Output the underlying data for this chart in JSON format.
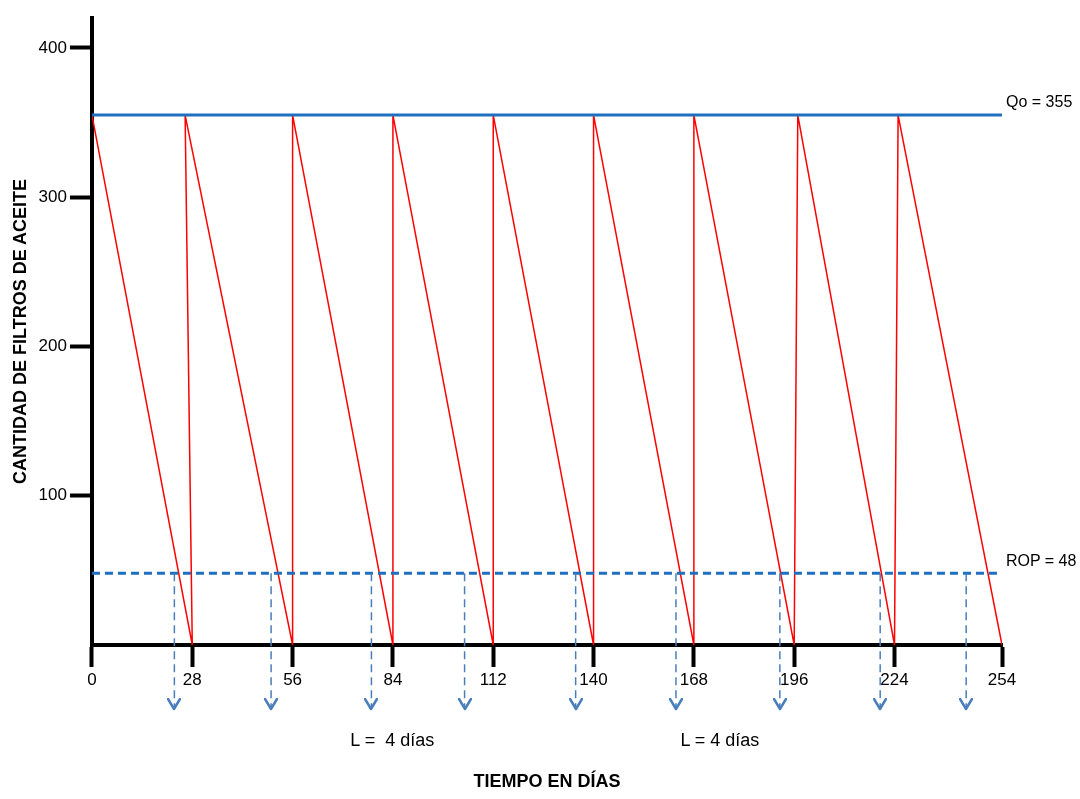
{
  "chart_data": {
    "type": "line",
    "xlabel": "TIEMPO EN DÍAS",
    "ylabel": "CANTIDAD DE FILTROS DE ACEITE",
    "xlim": [
      0,
      254
    ],
    "xticks": [
      0,
      28,
      56,
      84,
      112,
      140,
      168,
      196,
      224,
      254
    ],
    "ylim": [
      0,
      420
    ],
    "yticks": [
      100,
      200,
      300,
      400
    ],
    "grid": false,
    "marker": "none",
    "line_style": "solid",
    "series": [
      {
        "color": "#ff0000",
        "x": [
          0,
          28,
          26,
          56,
          56,
          84,
          84,
          112,
          112,
          140,
          140,
          168,
          168,
          196,
          197,
          224,
          225,
          254
        ],
        "values": [
          355,
          0,
          355,
          0,
          355,
          0,
          355,
          0,
          355,
          0,
          355,
          0,
          355,
          0,
          355,
          0,
          355,
          0
        ]
      }
    ],
    "ref_lines": [
      {
        "axis": "y",
        "value": 355,
        "label": "Qo = 355",
        "color": "#1f6fc0",
        "line_style": "solid"
      },
      {
        "axis": "y",
        "value": 48,
        "label": "ROP = 48",
        "color": "#1f6fc0",
        "line_style": "dashed"
      },
      {
        "axis": "x",
        "value": 23,
        "color": "#4a7ebb",
        "line_style": "dashed"
      },
      {
        "axis": "x",
        "value": 50,
        "color": "#4a7ebb",
        "line_style": "dashed"
      },
      {
        "axis": "x",
        "value": 78,
        "color": "#4a7ebb",
        "line_style": "dashed"
      },
      {
        "axis": "x",
        "value": 104,
        "color": "#4a7ebb",
        "line_style": "dashed"
      },
      {
        "axis": "x",
        "value": 135,
        "color": "#4a7ebb",
        "line_style": "dashed"
      },
      {
        "axis": "x",
        "value": 163,
        "color": "#4a7ebb",
        "line_style": "dashed"
      },
      {
        "axis": "x",
        "value": 192,
        "color": "#4a7ebb",
        "line_style": "dashed"
      },
      {
        "axis": "x",
        "value": 220,
        "color": "#4a7ebb",
        "line_style": "dashed"
      },
      {
        "axis": "x",
        "value": 244,
        "color": "#4a7ebb",
        "line_style": "dashed"
      }
    ],
    "annotations": [
      "L =  4 días",
      "L = 4 días"
    ]
  }
}
